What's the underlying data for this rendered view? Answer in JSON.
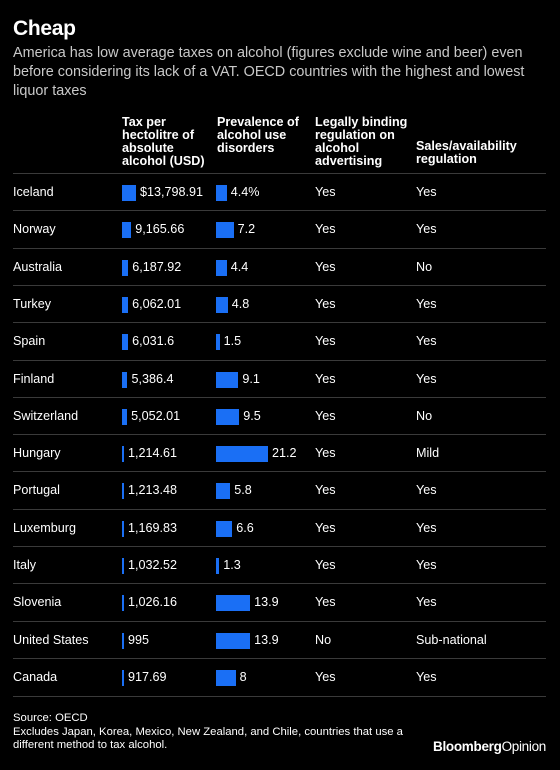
{
  "header": {
    "title": "Cheap",
    "subtitle": "America has low average taxes on alcohol (figures exclude wine and beer) even before considering its lack of a VAT. OECD countries with the highest and lowest liquor taxes"
  },
  "columns": {
    "tax": "Tax per hectolitre of absolute alcohol (USD)",
    "prevalence": "Prevalence of alcohol use disorders",
    "advertising": "Legally binding regulation on alcohol advertising",
    "sales": "Sales/availability regulation"
  },
  "colors": {
    "bar": "#1a6ff5",
    "background": "#000000",
    "text": "#ffffff"
  },
  "chart_data": {
    "type": "table",
    "tax_max": 13798.91,
    "prev_max": 21.2,
    "rows": [
      {
        "country": "Iceland",
        "tax": 13798.91,
        "tax_label": "$13,798.91",
        "prev": 4.4,
        "prev_label": "4.4%",
        "advertising": "Yes",
        "sales": "Yes"
      },
      {
        "country": "Norway",
        "tax": 9165.66,
        "tax_label": "9,165.66",
        "prev": 7.2,
        "prev_label": "7.2",
        "advertising": "Yes",
        "sales": "Yes"
      },
      {
        "country": "Australia",
        "tax": 6187.92,
        "tax_label": "6,187.92",
        "prev": 4.4,
        "prev_label": "4.4",
        "advertising": "Yes",
        "sales": "No"
      },
      {
        "country": "Turkey",
        "tax": 6062.01,
        "tax_label": "6,062.01",
        "prev": 4.8,
        "prev_label": "4.8",
        "advertising": "Yes",
        "sales": "Yes"
      },
      {
        "country": "Spain",
        "tax": 6031.6,
        "tax_label": "6,031.6",
        "prev": 1.5,
        "prev_label": "1.5",
        "advertising": "Yes",
        "sales": "Yes"
      },
      {
        "country": "Finland",
        "tax": 5386.4,
        "tax_label": "5,386.4",
        "prev": 9.1,
        "prev_label": "9.1",
        "advertising": "Yes",
        "sales": "Yes"
      },
      {
        "country": "Switzerland",
        "tax": 5052.01,
        "tax_label": "5,052.01",
        "prev": 9.5,
        "prev_label": "9.5",
        "advertising": "Yes",
        "sales": "No"
      },
      {
        "country": "Hungary",
        "tax": 1214.61,
        "tax_label": "1,214.61",
        "prev": 21.2,
        "prev_label": "21.2",
        "advertising": "Yes",
        "sales": "Mild"
      },
      {
        "country": "Portugal",
        "tax": 1213.48,
        "tax_label": "1,213.48",
        "prev": 5.8,
        "prev_label": "5.8",
        "advertising": "Yes",
        "sales": "Yes"
      },
      {
        "country": "Luxemburg",
        "tax": 1169.83,
        "tax_label": "1,169.83",
        "prev": 6.6,
        "prev_label": "6.6",
        "advertising": "Yes",
        "sales": "Yes"
      },
      {
        "country": "Italy",
        "tax": 1032.52,
        "tax_label": "1,032.52",
        "prev": 1.3,
        "prev_label": "1.3",
        "advertising": "Yes",
        "sales": "Yes"
      },
      {
        "country": "Slovenia",
        "tax": 1026.16,
        "tax_label": "1,026.16",
        "prev": 13.9,
        "prev_label": "13.9",
        "advertising": "Yes",
        "sales": "Yes"
      },
      {
        "country": "United States",
        "tax": 995,
        "tax_label": "995",
        "prev": 13.9,
        "prev_label": "13.9",
        "advertising": "No",
        "sales": "Sub-national"
      },
      {
        "country": "Canada",
        "tax": 917.69,
        "tax_label": "917.69",
        "prev": 8,
        "prev_label": "8",
        "advertising": "Yes",
        "sales": "Yes"
      }
    ]
  },
  "footer": {
    "source": "Source: OECD",
    "note": "Excludes Japan, Korea, Mexico, New Zealand, and Chile, countries that use a different method to tax alcohol.",
    "brand_bold": "Bloomberg",
    "brand_regular": "Opinion"
  }
}
